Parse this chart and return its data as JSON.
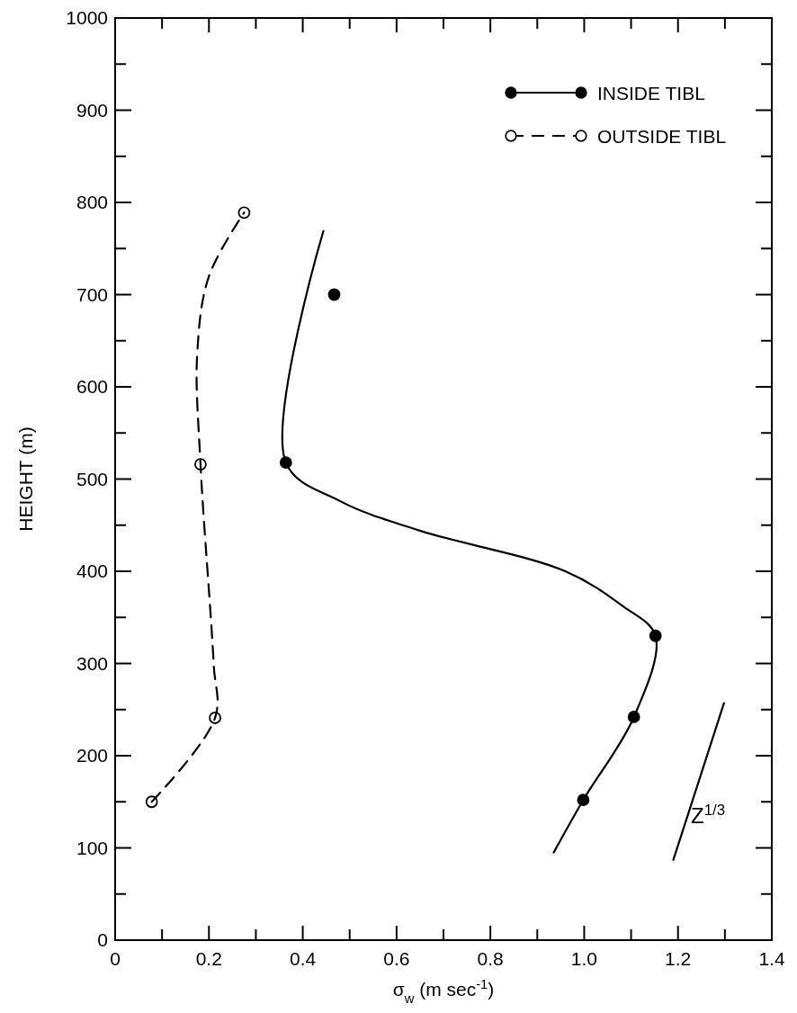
{
  "chart_data": {
    "type": "line",
    "xlabel": "σ$_{w}$ (m sec$^{-1}$)",
    "ylabel": "HEIGHT (m)",
    "xlim": [
      0,
      1.4
    ],
    "ylim": [
      0,
      1000
    ],
    "xticks": [
      0,
      {
        "value": 0.1,
        "label": null
      },
      0.2,
      {
        "value": 0.3,
        "label": null
      },
      0.4,
      {
        "value": 0.5,
        "label": null
      },
      0.6,
      {
        "value": 0.7,
        "label": null
      },
      0.8,
      {
        "value": 0.9,
        "label": null
      },
      {
        "value": 1,
        "label": "1.0"
      },
      {
        "value": 1.1,
        "label": null
      },
      1.2,
      {
        "value": 1.3,
        "label": null
      },
      1.4
    ],
    "yticks": [
      0,
      {
        "value": 50,
        "label": null
      },
      100,
      {
        "value": 150,
        "label": null
      },
      200,
      {
        "value": 250,
        "label": null
      },
      300,
      {
        "value": 350,
        "label": null
      },
      400,
      {
        "value": 450,
        "label": null
      },
      500,
      {
        "value": 550,
        "label": null
      },
      600,
      {
        "value": 650,
        "label": null
      },
      700,
      {
        "value": 750,
        "label": null
      },
      800,
      {
        "value": 850,
        "label": null
      },
      900,
      {
        "value": 950,
        "label": null
      },
      1000
    ],
    "grid": false,
    "legend": "top right",
    "series": [
      {
        "name": "INSIDE TIBL",
        "type": "scatter",
        "marker": "circle",
        "line_style": "solid",
        "color": "#000000",
        "x": [
          0.998,
          1.106,
          1.152,
          0.364,
          0.467
        ],
        "values": [
          152,
          242,
          330,
          518,
          700
        ]
      },
      {
        "marker": "none",
        "line_style": "solid",
        "color": "#000000",
        "x": [
          0.935,
          0.998,
          1.106,
          1.152,
          1.08,
          0.96,
          0.65,
          0.48,
          0.364,
          0.444
        ],
        "values": [
          95,
          152,
          242,
          330,
          363,
          400,
          444,
          476,
          518,
          769
        ]
      },
      {
        "name": "OUTSIDE TIBL",
        "type": "scatter",
        "marker": "circle",
        "line_style": "dashed",
        "color": "#ffffff",
        "x": [
          0.078,
          0.213,
          0.182,
          0.275
        ],
        "values": [
          150,
          241,
          516,
          789
        ]
      },
      {
        "marker": "none",
        "line_style": "dashed",
        "color": "#000000",
        "x": [
          0.078,
          0.213,
          0.21,
          0.182,
          0.175,
          0.2,
          0.275
        ],
        "values": [
          150,
          241,
          300,
          516,
          636,
          720,
          789
        ]
      },
      {
        "marker": "none",
        "line_style": "solid",
        "color": "#000000",
        "x": [
          1.19,
          1.298
        ],
        "values": [
          87,
          257
        ]
      }
    ],
    "annotations": [
      "Z$^{1/3}$"
    ]
  }
}
